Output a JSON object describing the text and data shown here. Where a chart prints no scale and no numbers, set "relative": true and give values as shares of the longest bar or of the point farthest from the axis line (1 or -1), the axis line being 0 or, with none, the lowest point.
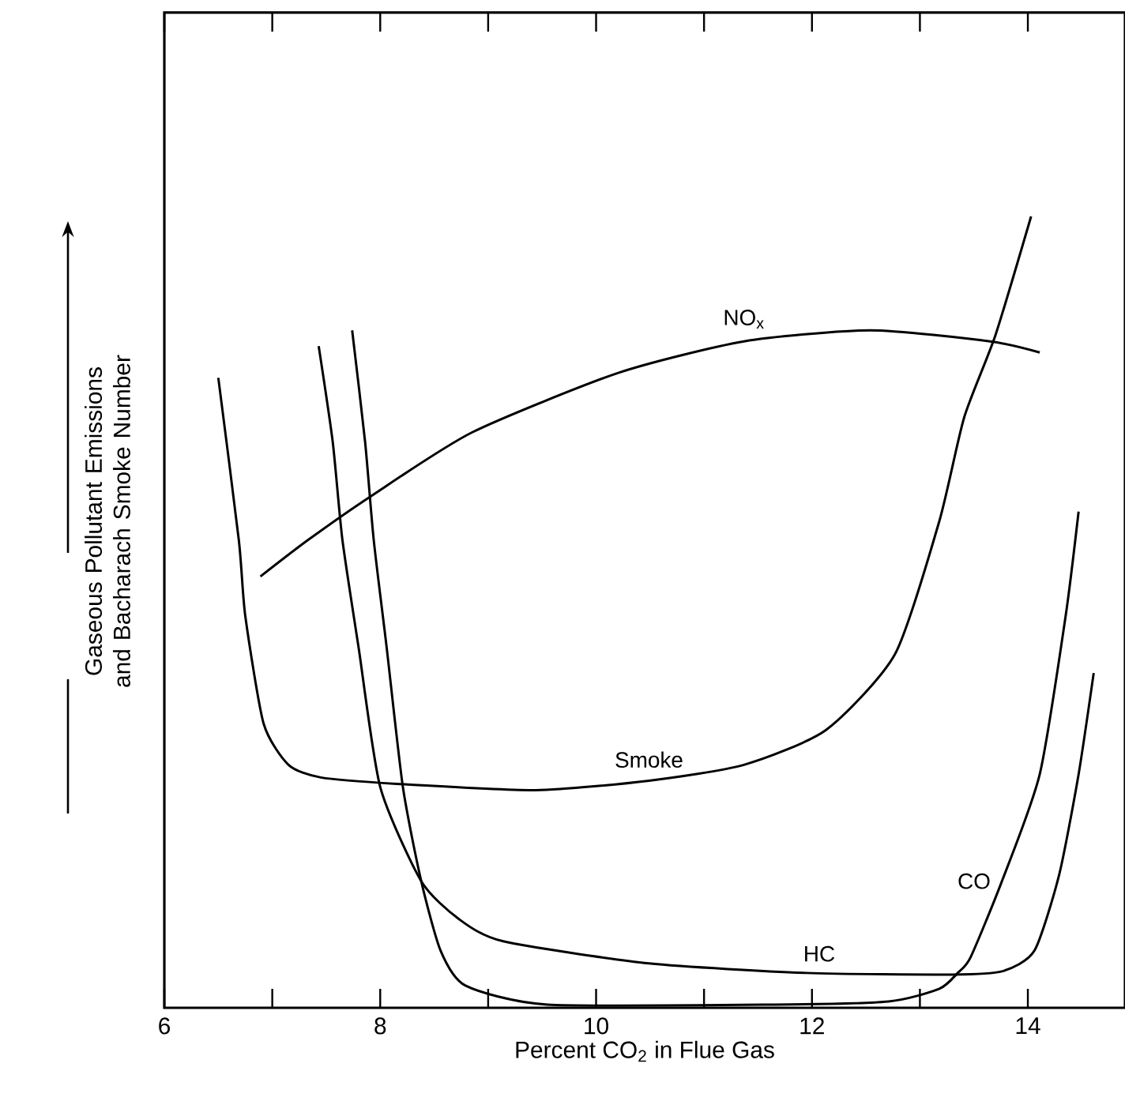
{
  "chart_data": {
    "type": "line",
    "xlabel": "Percent CO$_{2}$ in Flue Gas",
    "ylabel": "Gaseous Pollutant Emissions and Bacharach Smoke Number",
    "relative": true,
    "xlim": [
      6,
      14.9
    ],
    "xticks": [
      6,
      {
        "value": 7,
        "label": null
      },
      8,
      {
        "value": 9,
        "label": null
      },
      10,
      {
        "value": 11,
        "label": null
      },
      12,
      {
        "value": 13,
        "label": null
      },
      14
    ],
    "series": [
      {
        "name": "NO$_{x}$",
        "color": "#000000",
        "x": [
          6.89,
          7.33,
          7.92,
          8.85,
          10.2,
          11.37,
          12.54,
          13.65,
          14.11
        ],
        "values": [
          0.545,
          0.591,
          0.647,
          0.727,
          0.802,
          0.842,
          0.856,
          0.842,
          0.828
        ]
      },
      {
        "name": "Smoke",
        "color": "#000000",
        "x": [
          6.5,
          6.69,
          6.75,
          6.92,
          7.15,
          7.45,
          8.15,
          9.44,
          10.49,
          11.37,
          12.13,
          12.77,
          13.18,
          13.41,
          13.7,
          14.03
        ],
        "values": [
          0.796,
          0.591,
          0.495,
          0.359,
          0.307,
          0.291,
          0.283,
          0.275,
          0.287,
          0.307,
          0.351,
          0.447,
          0.615,
          0.746,
          0.85,
          1.0
        ]
      },
      {
        "name": "HC",
        "color": "#000000",
        "x": [
          7.43,
          7.56,
          7.65,
          7.8,
          8.0,
          8.38,
          8.73,
          9.14,
          10.49,
          11.95,
          13.3,
          13.76,
          14.06,
          14.29,
          14.47,
          14.61
        ],
        "values": [
          0.836,
          0.715,
          0.591,
          0.455,
          0.279,
          0.16,
          0.112,
          0.084,
          0.056,
          0.044,
          0.042,
          0.046,
          0.072,
          0.168,
          0.295,
          0.423
        ]
      },
      {
        "name": "CO",
        "color": "#000000",
        "x": [
          7.74,
          7.86,
          7.94,
          8.06,
          8.21,
          8.38,
          8.56,
          8.79,
          9.55,
          11.66,
          12.71,
          13.18,
          13.35,
          13.47,
          13.76,
          14.11,
          14.35,
          14.47
        ],
        "values": [
          0.856,
          0.715,
          0.591,
          0.455,
          0.279,
          0.16,
          0.072,
          0.028,
          0.004,
          0.004,
          0.008,
          0.024,
          0.044,
          0.064,
          0.16,
          0.295,
          0.495,
          0.627
        ]
      }
    ]
  }
}
